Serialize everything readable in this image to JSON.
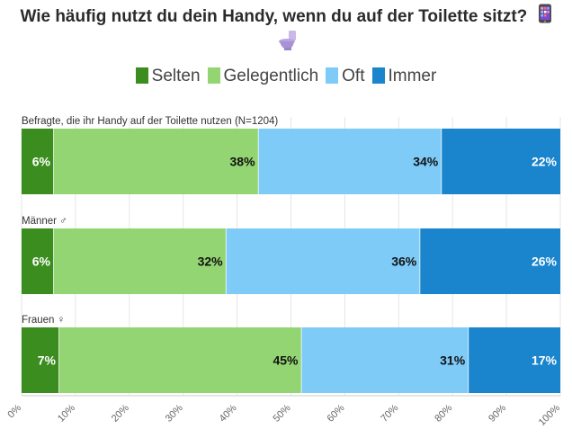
{
  "title": "Wie häufig nutzt du dein Handy, wenn du auf der Toilette sitzt?",
  "title_icons": [
    "mobile-phone-icon",
    "toilet-icon"
  ],
  "legend": [
    {
      "label": "Selten",
      "color": "#3b8d1f"
    },
    {
      "label": "Gelegentlich",
      "color": "#93d572"
    },
    {
      "label": "Oft",
      "color": "#7ecbf7"
    },
    {
      "label": "Immer",
      "color": "#1a84cc"
    }
  ],
  "chart_data": {
    "type": "bar",
    "orientation": "horizontal",
    "stacked": true,
    "categories": [
      "Befragte, die ihr Handy auf der Toilette nutzen (N=1204)",
      "Männer ♂",
      "Frauen ♀"
    ],
    "series": [
      {
        "name": "Selten",
        "color": "#3b8d1f",
        "label_color": "#ffffff",
        "values": [
          6,
          6,
          7
        ]
      },
      {
        "name": "Gelegentlich",
        "color": "#93d572",
        "label_color": "#111111",
        "values": [
          38,
          32,
          45
        ]
      },
      {
        "name": "Oft",
        "color": "#7ecbf7",
        "label_color": "#111111",
        "values": [
          34,
          36,
          31
        ]
      },
      {
        "name": "Immer",
        "color": "#1a84cc",
        "label_color": "#ffffff",
        "values": [
          22,
          26,
          17
        ]
      }
    ],
    "x_ticks": [
      "0%",
      "10%",
      "20%",
      "30%",
      "40%",
      "50%",
      "60%",
      "70%",
      "80%",
      "90%",
      "100%"
    ],
    "xlim": [
      0,
      100
    ],
    "grid": true,
    "legend_position": "top"
  }
}
